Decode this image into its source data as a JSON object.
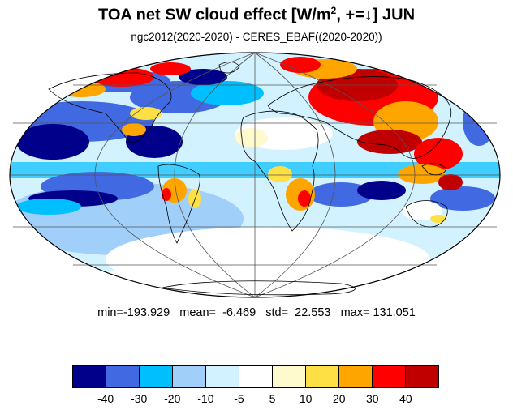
{
  "title": {
    "main": "TOA net SW cloud effect [W/m",
    "sup": "2",
    "tail": ", +=↓]  JUN"
  },
  "subtitle": "ngc2012(2020-2020) - CERES_EBAF((2020-2020))",
  "stats": {
    "text": "min=-193.929   mean=  -6.469   std=  22.553   max= 131.051"
  },
  "colorbar": {
    "colors": [
      "#00008b",
      "#4169e1",
      "#00bfff",
      "#a0cff9",
      "#d2f2ff",
      "#ffffff",
      "#fffacd",
      "#ffe044",
      "#ffa500",
      "#ff0000",
      "#c00000"
    ],
    "labels": [
      "-40",
      "-30",
      "-20",
      "-10",
      "-5",
      "5",
      "10",
      "20",
      "30",
      "40"
    ]
  },
  "map": {
    "projection": "Mollweide",
    "coastline_color": "#000000",
    "grid_color": "#555555"
  }
}
